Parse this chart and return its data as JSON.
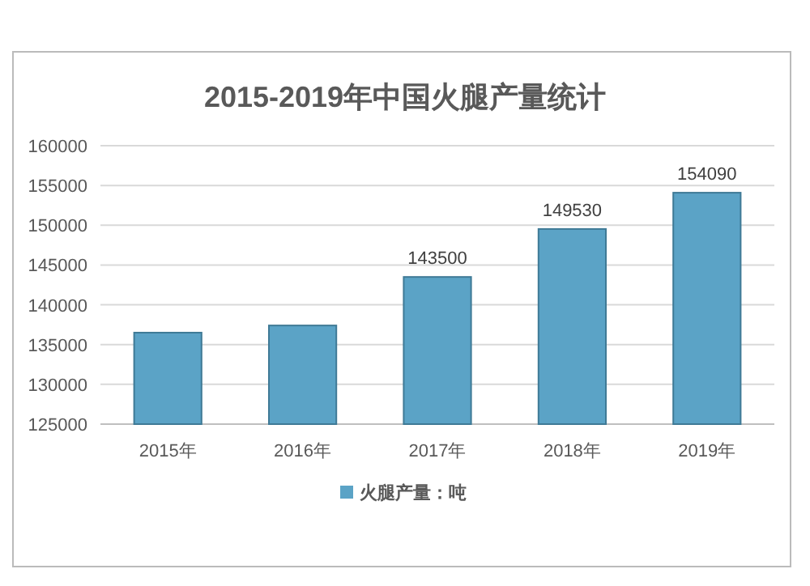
{
  "chart_data": {
    "type": "bar",
    "title": "2015-2019年中国火腿产量统计",
    "categories": [
      "2015年",
      "2016年",
      "2017年",
      "2018年",
      "2019年"
    ],
    "series": [
      {
        "name": "火腿产量：吨",
        "color": "#5ba3c6",
        "values": [
          136500,
          137400,
          143500,
          149530,
          154090
        ],
        "value_labels": [
          null,
          null,
          "143500",
          "149530",
          "154090"
        ]
      }
    ],
    "ylim": [
      125000,
      160000
    ],
    "yticks": [
      125000,
      130000,
      135000,
      140000,
      145000,
      150000,
      155000,
      160000
    ],
    "grid": "y",
    "legend": "bottom"
  }
}
